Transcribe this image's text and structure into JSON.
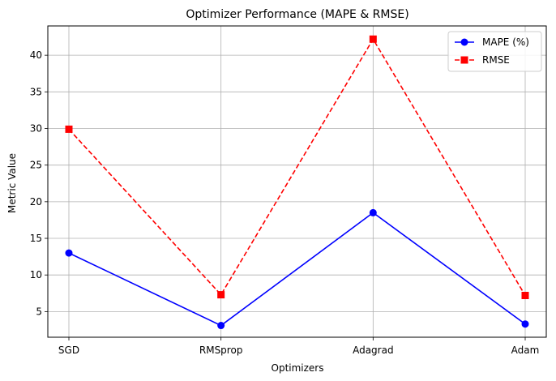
{
  "chart_data": {
    "type": "line",
    "title": "Optimizer Performance (MAPE & RMSE)",
    "xlabel": "Optimizers",
    "ylabel": "Metric Value",
    "categories": [
      "SGD",
      "RMSprop",
      "Adagrad",
      "Adam"
    ],
    "ylim": [
      1.5,
      44
    ],
    "yticks": [
      5,
      10,
      15,
      20,
      25,
      30,
      35,
      40
    ],
    "grid": true,
    "legend_position": "top-right",
    "series": [
      {
        "name": "MAPE (%)",
        "values": [
          13.0,
          3.1,
          18.5,
          3.3
        ],
        "color": "#0000ff",
        "marker": "circle",
        "linestyle": "solid"
      },
      {
        "name": "RMSE",
        "values": [
          29.9,
          7.3,
          42.2,
          7.2
        ],
        "color": "#ff0000",
        "marker": "square",
        "linestyle": "dashed"
      }
    ]
  }
}
